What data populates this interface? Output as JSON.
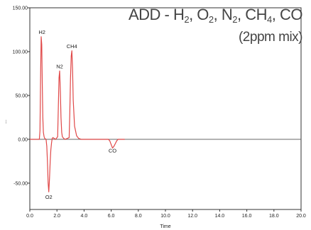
{
  "chart_data": {
    "type": "line",
    "title": {
      "prefix": "ADD - ",
      "gases": [
        {
          "symbol": "H",
          "sub": "2"
        },
        {
          "symbol": "O",
          "sub": "2"
        },
        {
          "symbol": "N",
          "sub": "2"
        },
        {
          "symbol": "CH",
          "sub": "4"
        },
        {
          "symbol": "CO",
          "sub": ""
        }
      ],
      "separator": ", ",
      "subtitle": "(2ppm mix)"
    },
    "xlabel": "Time",
    "ylabel": "...",
    "xlim": [
      0,
      20
    ],
    "ylim": [
      -80,
      150
    ],
    "x_ticks": [
      "0.0",
      "2.0",
      "4.0",
      "6.0",
      "8.0",
      "10.0",
      "12.0",
      "14.0",
      "16.0",
      "18.0",
      "20.0"
    ],
    "y_ticks": [
      "-50.00",
      "0.00",
      "50.00",
      "100.00",
      "150.00"
    ],
    "baseline": 0,
    "line_color": "#e04848",
    "series": [
      {
        "x": [
          0.0,
          0.7,
          0.75,
          0.8,
          0.84,
          0.88,
          0.92,
          0.96,
          1.0,
          1.05,
          1.1,
          1.2,
          1.25,
          1.3,
          1.35,
          1.4,
          1.45,
          1.5,
          1.55,
          1.6,
          1.65,
          1.7,
          1.8,
          1.9,
          2.05,
          2.1,
          2.15,
          2.2,
          2.25,
          2.3,
          2.35,
          2.4,
          2.5,
          2.6,
          2.9,
          2.95,
          3.0,
          3.05,
          3.1,
          3.15,
          3.2,
          3.3,
          3.45,
          3.6,
          3.8,
          4.0,
          5.8,
          5.9,
          6.0,
          6.1,
          6.2,
          6.3,
          6.4,
          6.5,
          7.0
        ],
        "y": [
          0,
          0,
          10,
          80,
          117,
          108,
          60,
          25,
          8,
          3,
          1,
          0,
          -8,
          -25,
          -50,
          -60,
          -45,
          -25,
          -12,
          -4,
          1,
          2,
          1,
          0,
          3,
          35,
          70,
          78,
          55,
          25,
          8,
          3,
          1,
          0,
          2,
          30,
          70,
          95,
          101,
          80,
          45,
          15,
          4,
          1,
          0,
          0,
          0,
          -2,
          -6,
          -10,
          -8,
          -5,
          -2,
          0,
          0
        ]
      }
    ],
    "annotations": [
      {
        "text": "H2",
        "x": 0.9,
        "y": 120
      },
      {
        "text": "O2",
        "x": 1.4,
        "y": -68
      },
      {
        "text": "N2",
        "x": 2.2,
        "y": 81
      },
      {
        "text": "CH4",
        "x": 3.1,
        "y": 104
      },
      {
        "text": "CO",
        "x": 6.1,
        "y": -15
      }
    ]
  }
}
